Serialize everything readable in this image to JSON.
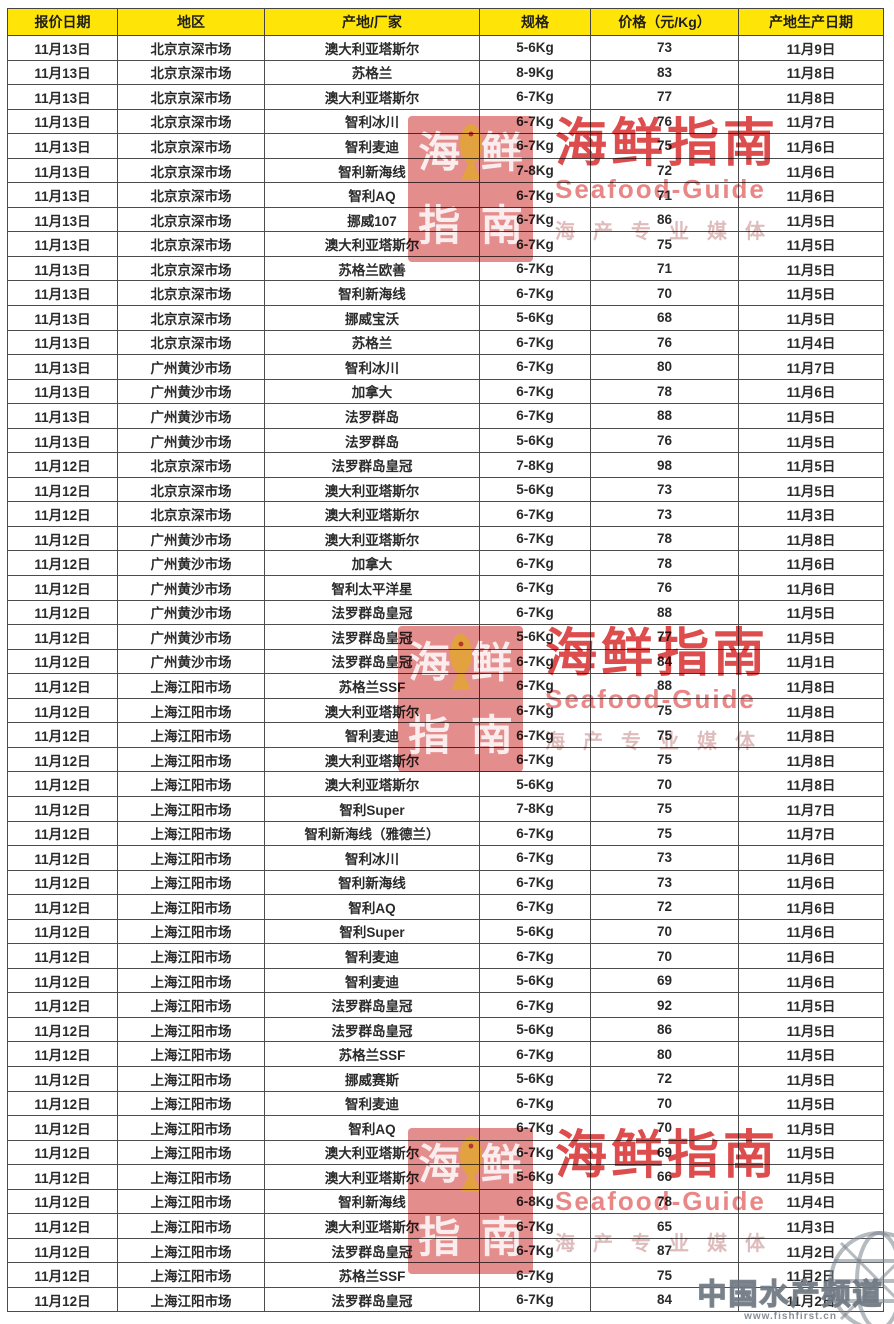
{
  "table": {
    "columns": [
      {
        "key": "quote_date",
        "label": "报价日期"
      },
      {
        "key": "region",
        "label": "地区"
      },
      {
        "key": "origin",
        "label": "产地/厂家"
      },
      {
        "key": "spec",
        "label": "规格"
      },
      {
        "key": "price",
        "label": "价格（元/Kg）"
      },
      {
        "key": "production_date",
        "label": "产地生产日期"
      }
    ],
    "rows": [
      [
        "11月13日",
        "北京京深市场",
        "澳大利亚塔斯尔",
        "5-6Kg",
        73,
        "11月9日"
      ],
      [
        "11月13日",
        "北京京深市场",
        "苏格兰",
        "8-9Kg",
        83,
        "11月8日"
      ],
      [
        "11月13日",
        "北京京深市场",
        "澳大利亚塔斯尔",
        "6-7Kg",
        77,
        "11月8日"
      ],
      [
        "11月13日",
        "北京京深市场",
        "智利冰川",
        "6-7Kg",
        76,
        "11月7日"
      ],
      [
        "11月13日",
        "北京京深市场",
        "智利麦迪",
        "6-7Kg",
        75,
        "11月6日"
      ],
      [
        "11月13日",
        "北京京深市场",
        "智利新海线",
        "7-8Kg",
        72,
        "11月6日"
      ],
      [
        "11月13日",
        "北京京深市场",
        "智利AQ",
        "6-7Kg",
        71,
        "11月6日"
      ],
      [
        "11月13日",
        "北京京深市场",
        "挪威107",
        "6-7Kg",
        86,
        "11月5日"
      ],
      [
        "11月13日",
        "北京京深市场",
        "澳大利亚塔斯尔",
        "6-7Kg",
        75,
        "11月5日"
      ],
      [
        "11月13日",
        "北京京深市场",
        "苏格兰欧善",
        "6-7Kg",
        71,
        "11月5日"
      ],
      [
        "11月13日",
        "北京京深市场",
        "智利新海线",
        "6-7Kg",
        70,
        "11月5日"
      ],
      [
        "11月13日",
        "北京京深市场",
        "挪威宝沃",
        "5-6Kg",
        68,
        "11月5日"
      ],
      [
        "11月13日",
        "北京京深市场",
        "苏格兰",
        "6-7Kg",
        76,
        "11月4日"
      ],
      [
        "11月13日",
        "广州黄沙市场",
        "智利冰川",
        "6-7Kg",
        80,
        "11月7日"
      ],
      [
        "11月13日",
        "广州黄沙市场",
        "加拿大",
        "6-7Kg",
        78,
        "11月6日"
      ],
      [
        "11月13日",
        "广州黄沙市场",
        "法罗群岛",
        "6-7Kg",
        88,
        "11月5日"
      ],
      [
        "11月13日",
        "广州黄沙市场",
        "法罗群岛",
        "5-6Kg",
        76,
        "11月5日"
      ],
      [
        "11月12日",
        "北京京深市场",
        "法罗群岛皇冠",
        "7-8Kg",
        98,
        "11月5日"
      ],
      [
        "11月12日",
        "北京京深市场",
        "澳大利亚塔斯尔",
        "5-6Kg",
        73,
        "11月5日"
      ],
      [
        "11月12日",
        "北京京深市场",
        "澳大利亚塔斯尔",
        "6-7Kg",
        73,
        "11月3日"
      ],
      [
        "11月12日",
        "广州黄沙市场",
        "澳大利亚塔斯尔",
        "6-7Kg",
        78,
        "11月8日"
      ],
      [
        "11月12日",
        "广州黄沙市场",
        "加拿大",
        "6-7Kg",
        78,
        "11月6日"
      ],
      [
        "11月12日",
        "广州黄沙市场",
        "智利太平洋星",
        "6-7Kg",
        76,
        "11月6日"
      ],
      [
        "11月12日",
        "广州黄沙市场",
        "法罗群岛皇冠",
        "6-7Kg",
        88,
        "11月5日"
      ],
      [
        "11月12日",
        "广州黄沙市场",
        "法罗群岛皇冠",
        "5-6Kg",
        77,
        "11月5日"
      ],
      [
        "11月12日",
        "广州黄沙市场",
        "法罗群岛皇冠",
        "6-7Kg",
        84,
        "11月1日"
      ],
      [
        "11月12日",
        "上海江阳市场",
        "苏格兰SSF",
        "6-7Kg",
        88,
        "11月8日"
      ],
      [
        "11月12日",
        "上海江阳市场",
        "澳大利亚塔斯尔",
        "6-7Kg",
        75,
        "11月8日"
      ],
      [
        "11月12日",
        "上海江阳市场",
        "智利麦迪",
        "6-7Kg",
        75,
        "11月8日"
      ],
      [
        "11月12日",
        "上海江阳市场",
        "澳大利亚塔斯尔",
        "6-7Kg",
        75,
        "11月8日"
      ],
      [
        "11月12日",
        "上海江阳市场",
        "澳大利亚塔斯尔",
        "5-6Kg",
        70,
        "11月8日"
      ],
      [
        "11月12日",
        "上海江阳市场",
        "智利Super",
        "7-8Kg",
        75,
        "11月7日"
      ],
      [
        "11月12日",
        "上海江阳市场",
        "智利新海线（雅德兰）",
        "6-7Kg",
        75,
        "11月7日"
      ],
      [
        "11月12日",
        "上海江阳市场",
        "智利冰川",
        "6-7Kg",
        73,
        "11月6日"
      ],
      [
        "11月12日",
        "上海江阳市场",
        "智利新海线",
        "6-7Kg",
        73,
        "11月6日"
      ],
      [
        "11月12日",
        "上海江阳市场",
        "智利AQ",
        "6-7Kg",
        72,
        "11月6日"
      ],
      [
        "11月12日",
        "上海江阳市场",
        "智利Super",
        "5-6Kg",
        70,
        "11月6日"
      ],
      [
        "11月12日",
        "上海江阳市场",
        "智利麦迪",
        "6-7Kg",
        70,
        "11月6日"
      ],
      [
        "11月12日",
        "上海江阳市场",
        "智利麦迪",
        "5-6Kg",
        69,
        "11月6日"
      ],
      [
        "11月12日",
        "上海江阳市场",
        "法罗群岛皇冠",
        "6-7Kg",
        92,
        "11月5日"
      ],
      [
        "11月12日",
        "上海江阳市场",
        "法罗群岛皇冠",
        "5-6Kg",
        86,
        "11月5日"
      ],
      [
        "11月12日",
        "上海江阳市场",
        "苏格兰SSF",
        "6-7Kg",
        80,
        "11月5日"
      ],
      [
        "11月12日",
        "上海江阳市场",
        "挪威赛斯",
        "5-6Kg",
        72,
        "11月5日"
      ],
      [
        "11月12日",
        "上海江阳市场",
        "智利麦迪",
        "6-7Kg",
        70,
        "11月5日"
      ],
      [
        "11月12日",
        "上海江阳市场",
        "智利AQ",
        "6-7Kg",
        70,
        "11月5日"
      ],
      [
        "11月12日",
        "上海江阳市场",
        "澳大利亚塔斯尔",
        "6-7Kg",
        69,
        "11月5日"
      ],
      [
        "11月12日",
        "上海江阳市场",
        "澳大利亚塔斯尔",
        "5-6Kg",
        66,
        "11月5日"
      ],
      [
        "11月12日",
        "上海江阳市场",
        "智利新海线",
        "6-8Kg",
        78,
        "11月4日"
      ],
      [
        "11月12日",
        "上海江阳市场",
        "澳大利亚塔斯尔",
        "6-7Kg",
        65,
        "11月3日"
      ],
      [
        "11月12日",
        "上海江阳市场",
        "法罗群岛皇冠",
        "6-7Kg",
        87,
        "11月2日"
      ],
      [
        "11月12日",
        "上海江阳市场",
        "苏格兰SSF",
        "6-7Kg",
        75,
        "11月2日"
      ],
      [
        "11月12日",
        "上海江阳市场",
        "法罗群岛皇冠",
        "6-7Kg",
        84,
        "11月2日"
      ]
    ]
  },
  "watermark": {
    "seal_chars": [
      "海",
      "鲜",
      "指",
      "南"
    ],
    "title": "海鲜指南",
    "subtitle": "Seafood-Guide",
    "tagline": "海产专业媒体",
    "brand_red": "#d93434",
    "fish_gold": "#e2a43a"
  },
  "channel_watermark": {
    "name": "中国水产频道",
    "url": "www.fishfirst.cn"
  },
  "colors": {
    "header_bg": "#ffe408",
    "grid_border": "#4c4c4c"
  }
}
